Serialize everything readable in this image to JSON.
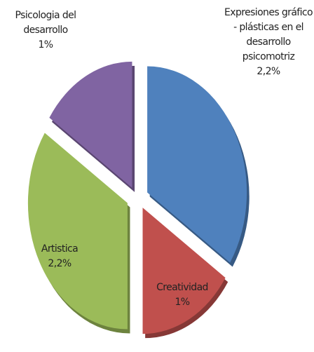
{
  "chart_data": {
    "type": "pie",
    "categories": [
      "Expresiones gráfico - plásticas en el desarrollo psicomotriz",
      "Creatividad",
      "Artistica",
      "Psicologia del desarrollo"
    ],
    "values": [
      2.2,
      1,
      2.2,
      1
    ],
    "value_labels": [
      "2,2%",
      "1%",
      "2,2%",
      "1%"
    ],
    "colors": [
      "#4f81bd",
      "#c0504d",
      "#9bbb59",
      "#8064a2"
    ]
  }
}
